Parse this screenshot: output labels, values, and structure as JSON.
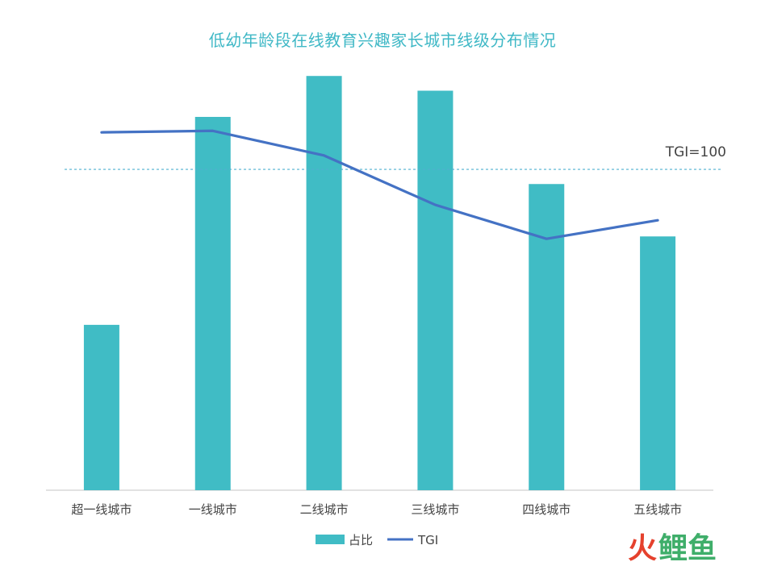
{
  "chart_data": {
    "type": "bar",
    "title": "低幼年龄段在线教育兴趣家长城市线级分布情况",
    "categories": [
      "超一线城市",
      "一线城市",
      "二线城市",
      "三线城市",
      "四线城市",
      "五线城市"
    ],
    "series": [
      {
        "name": "占比",
        "kind": "bar",
        "color": "#40bcc5",
        "axis": "left",
        "values": [
          10.1,
          22.8,
          25.3,
          24.4,
          18.7,
          15.5
        ]
      },
      {
        "name": "TGI",
        "kind": "line",
        "color": "#4472c4",
        "axis": "right",
        "values": [
          124,
          125,
          109,
          77,
          55,
          67
        ]
      }
    ],
    "reference_line": {
      "value": 100,
      "label": "TGI=100",
      "color": "#4fb0d0"
    },
    "axes": {
      "left_range": [
        0,
        26
      ],
      "right_range": [
        -108,
        168
      ],
      "visible": false
    },
    "grid": false,
    "legend_position": "bottom"
  },
  "watermark": {
    "text": "鲤鱼",
    "mark": "火",
    "colors": [
      "#e5412d",
      "#3fae6a"
    ]
  }
}
